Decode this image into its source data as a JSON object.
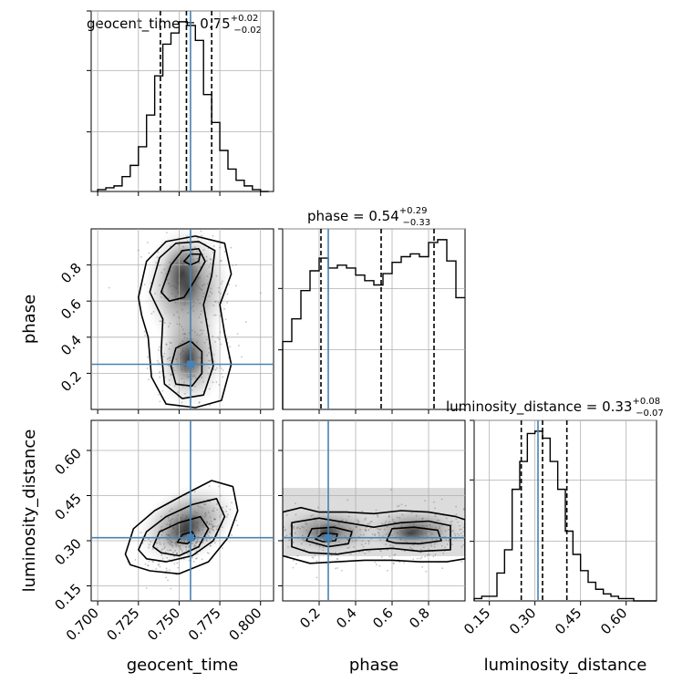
{
  "chart_data": {
    "type": "corner",
    "parameters": [
      "geocent_time",
      "phase",
      "luminosity_distance"
    ],
    "truth": {
      "geocent_time": 0.757,
      "phase": 0.25,
      "luminosity_distance": 0.31
    },
    "truth_color": "#4682b4",
    "ranges": {
      "geocent_time": [
        0.696,
        0.808
      ],
      "phase": [
        0.0,
        1.0
      ],
      "luminosity_distance": [
        0.1,
        0.7
      ]
    },
    "titles": {
      "geocent_time": {
        "name": "geocent_time",
        "median": "0.75",
        "plus": "+0.02",
        "minus": "−0.02"
      },
      "phase": {
        "name": "phase",
        "median": "0.54",
        "plus": "+0.29",
        "minus": "−0.33"
      },
      "luminosity_distance": {
        "name": "luminosity_distance",
        "median": "0.33",
        "plus": "+0.08",
        "minus": "−0.07"
      }
    },
    "quantiles": {
      "geocent_time": [
        0.7385,
        0.7545,
        0.77
      ],
      "phase": [
        0.21,
        0.54,
        0.83
      ],
      "luminosity_distance": [
        0.255,
        0.325,
        0.405
      ]
    },
    "ticks": {
      "geocent_time": {
        "values": [
          0.7,
          0.725,
          0.75,
          0.775,
          0.8
        ],
        "labels": [
          "0.700",
          "0.725",
          "0.750",
          "0.775",
          "0.800"
        ]
      },
      "phase": {
        "values": [
          0.2,
          0.4,
          0.6,
          0.8
        ],
        "labels": [
          "0.2",
          "0.4",
          "0.6",
          "0.8"
        ]
      },
      "luminosity_distance": {
        "values": [
          0.15,
          0.3,
          0.45,
          0.6
        ],
        "labels": [
          "0.15",
          "0.30",
          "0.45",
          "0.60"
        ]
      }
    },
    "hist1d": {
      "geocent_time": {
        "bin_edges": [
          0.7,
          0.705,
          0.71,
          0.715,
          0.72,
          0.725,
          0.73,
          0.735,
          0.74,
          0.745,
          0.75,
          0.755,
          0.76,
          0.765,
          0.77,
          0.775,
          0.78,
          0.785,
          0.79,
          0.795,
          0.8,
          0.805
        ],
        "counts": [
          1,
          2,
          3,
          8,
          14,
          24,
          41,
          62,
          79,
          85,
          91,
          89,
          81,
          52,
          37,
          22,
          12,
          6,
          3,
          1,
          0
        ]
      },
      "phase": {
        "bin_edges": [
          0.0,
          0.05,
          0.1,
          0.15,
          0.2,
          0.25,
          0.3,
          0.35,
          0.4,
          0.45,
          0.5,
          0.55,
          0.6,
          0.65,
          0.7,
          0.75,
          0.8,
          0.85,
          0.9,
          0.95,
          1.0
        ],
        "counts": [
          48,
          64,
          84,
          98,
          107,
          100,
          102,
          100,
          95,
          91,
          88,
          96,
          104,
          108,
          110,
          108,
          118,
          120,
          105,
          79
        ]
      },
      "luminosity_distance": {
        "bin_edges": [
          0.1,
          0.125,
          0.15,
          0.175,
          0.2,
          0.225,
          0.25,
          0.275,
          0.3,
          0.325,
          0.35,
          0.375,
          0.4,
          0.425,
          0.45,
          0.475,
          0.5,
          0.525,
          0.55,
          0.575,
          0.6,
          0.625,
          0.65,
          0.675,
          0.7
        ],
        "counts": [
          1,
          2,
          2,
          12,
          22,
          48,
          60,
          72,
          73,
          70,
          60,
          48,
          30,
          20,
          13,
          8,
          5,
          3,
          2,
          1,
          1,
          0,
          0,
          0
        ]
      }
    },
    "contours2d": {
      "phase_vs_geocent_time": [
        [
          [
            0.725,
            0.62
          ],
          [
            0.73,
            0.82
          ],
          [
            0.742,
            0.93
          ],
          [
            0.76,
            0.96
          ],
          [
            0.778,
            0.92
          ],
          [
            0.782,
            0.75
          ],
          [
            0.775,
            0.58
          ],
          [
            0.778,
            0.42
          ],
          [
            0.782,
            0.25
          ],
          [
            0.776,
            0.05
          ],
          [
            0.76,
            0.01
          ],
          [
            0.742,
            0.03
          ],
          [
            0.733,
            0.18
          ],
          [
            0.731,
            0.4
          ],
          [
            0.727,
            0.52
          ]
        ],
        [
          [
            0.732,
            0.65
          ],
          [
            0.738,
            0.84
          ],
          [
            0.748,
            0.92
          ],
          [
            0.762,
            0.93
          ],
          [
            0.772,
            0.88
          ],
          [
            0.77,
            0.74
          ],
          [
            0.765,
            0.58
          ],
          [
            0.768,
            0.42
          ],
          [
            0.771,
            0.24
          ],
          [
            0.765,
            0.08
          ],
          [
            0.752,
            0.06
          ],
          [
            0.741,
            0.14
          ],
          [
            0.739,
            0.32
          ],
          [
            0.74,
            0.5
          ]
        ],
        [
          [
            0.739,
            0.65
          ],
          [
            0.745,
            0.8
          ],
          [
            0.752,
            0.88
          ],
          [
            0.762,
            0.89
          ],
          [
            0.766,
            0.82
          ],
          [
            0.76,
            0.72
          ],
          [
            0.753,
            0.62
          ],
          [
            0.744,
            0.6
          ]
        ],
        [
          [
            0.748,
            0.14
          ],
          [
            0.745,
            0.24
          ],
          [
            0.748,
            0.34
          ],
          [
            0.757,
            0.38
          ],
          [
            0.764,
            0.32
          ],
          [
            0.764,
            0.2
          ],
          [
            0.758,
            0.13
          ]
        ],
        [
          [
            0.753,
            0.82
          ],
          [
            0.757,
            0.86
          ],
          [
            0.763,
            0.86
          ],
          [
            0.762,
            0.82
          ],
          [
            0.757,
            0.8
          ]
        ]
      ],
      "luminosity_distance_vs_geocent_time": [
        [
          [
            0.717,
            0.255
          ],
          [
            0.722,
            0.34
          ],
          [
            0.735,
            0.4
          ],
          [
            0.752,
            0.45
          ],
          [
            0.77,
            0.5
          ],
          [
            0.783,
            0.48
          ],
          [
            0.786,
            0.4
          ],
          [
            0.78,
            0.31
          ],
          [
            0.768,
            0.23
          ],
          [
            0.75,
            0.19
          ],
          [
            0.732,
            0.2
          ],
          [
            0.72,
            0.22
          ]
        ],
        [
          [
            0.725,
            0.27
          ],
          [
            0.73,
            0.33
          ],
          [
            0.742,
            0.38
          ],
          [
            0.758,
            0.42
          ],
          [
            0.773,
            0.44
          ],
          [
            0.778,
            0.38
          ],
          [
            0.771,
            0.3
          ],
          [
            0.758,
            0.25
          ],
          [
            0.742,
            0.23
          ],
          [
            0.73,
            0.24
          ]
        ],
        [
          [
            0.734,
            0.28
          ],
          [
            0.738,
            0.33
          ],
          [
            0.75,
            0.36
          ],
          [
            0.763,
            0.38
          ],
          [
            0.768,
            0.34
          ],
          [
            0.762,
            0.28
          ],
          [
            0.75,
            0.25
          ],
          [
            0.739,
            0.26
          ]
        ],
        [
          [
            0.749,
            0.295
          ],
          [
            0.752,
            0.32
          ],
          [
            0.758,
            0.33
          ],
          [
            0.76,
            0.31
          ],
          [
            0.755,
            0.29
          ]
        ]
      ],
      "luminosity_distance_vs_phase": [
        [
          [
            0.0,
            0.25
          ],
          [
            0.0,
            0.395
          ],
          [
            0.1,
            0.41
          ],
          [
            0.2,
            0.395
          ],
          [
            0.35,
            0.395
          ],
          [
            0.5,
            0.39
          ],
          [
            0.65,
            0.4
          ],
          [
            0.8,
            0.395
          ],
          [
            0.95,
            0.38
          ],
          [
            1.0,
            0.37
          ],
          [
            1.0,
            0.24
          ],
          [
            0.9,
            0.23
          ],
          [
            0.75,
            0.23
          ],
          [
            0.6,
            0.235
          ],
          [
            0.45,
            0.235
          ],
          [
            0.3,
            0.23
          ],
          [
            0.15,
            0.225
          ]
        ],
        [
          [
            0.05,
            0.28
          ],
          [
            0.05,
            0.36
          ],
          [
            0.2,
            0.375
          ],
          [
            0.35,
            0.36
          ],
          [
            0.5,
            0.345
          ],
          [
            0.65,
            0.36
          ],
          [
            0.8,
            0.365
          ],
          [
            0.92,
            0.35
          ],
          [
            0.92,
            0.27
          ],
          [
            0.75,
            0.265
          ],
          [
            0.6,
            0.275
          ],
          [
            0.45,
            0.27
          ],
          [
            0.3,
            0.255
          ],
          [
            0.15,
            0.26
          ]
        ],
        [
          [
            0.13,
            0.3
          ],
          [
            0.16,
            0.34
          ],
          [
            0.28,
            0.345
          ],
          [
            0.38,
            0.33
          ],
          [
            0.36,
            0.29
          ],
          [
            0.25,
            0.28
          ]
        ],
        [
          [
            0.57,
            0.3
          ],
          [
            0.6,
            0.34
          ],
          [
            0.72,
            0.345
          ],
          [
            0.85,
            0.335
          ],
          [
            0.87,
            0.3
          ],
          [
            0.75,
            0.29
          ],
          [
            0.62,
            0.292
          ]
        ],
        [
          [
            0.18,
            0.305
          ],
          [
            0.22,
            0.325
          ],
          [
            0.3,
            0.322
          ],
          [
            0.29,
            0.3
          ],
          [
            0.22,
            0.297
          ]
        ]
      ]
    }
  }
}
